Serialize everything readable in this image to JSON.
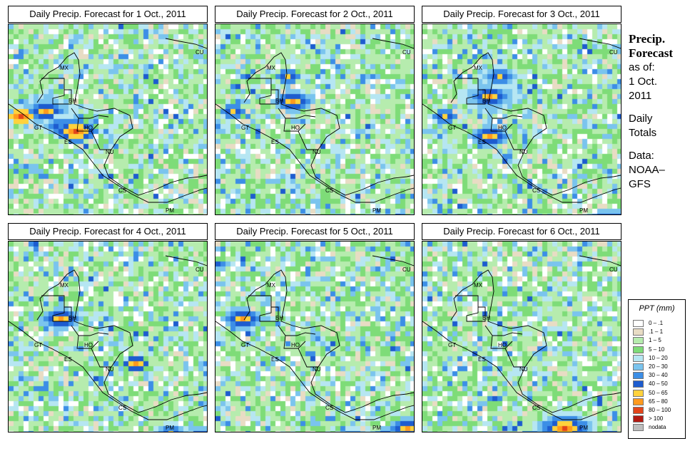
{
  "panels": [
    {
      "title": "Daily Precip. Forecast for  1 Oct., 2011",
      "seed": 11,
      "hot": [
        [
          55,
          120,
          3,
          5
        ],
        [
          70,
          140,
          2,
          4
        ],
        [
          95,
          150,
          2,
          6
        ],
        [
          20,
          130,
          1,
          6
        ],
        [
          320,
          40,
          0,
          0
        ]
      ]
    },
    {
      "title": "Daily Precip. Forecast for  2 Oct., 2011",
      "seed": 23,
      "hot": [
        [
          110,
          110,
          2,
          5
        ],
        [
          100,
          75,
          1,
          4
        ],
        [
          25,
          120,
          1,
          4
        ]
      ]
    },
    {
      "title": "Daily Precip. Forecast for  3 Oct., 2011",
      "seed": 37,
      "hot": [
        [
          95,
          100,
          3,
          5
        ],
        [
          105,
          75,
          2,
          4
        ],
        [
          95,
          160,
          2,
          5
        ],
        [
          30,
          130,
          1,
          4
        ],
        [
          265,
          285,
          3,
          7
        ]
      ]
    },
    {
      "title": "Daily Precip. Forecast for  4 Oct., 2011",
      "seed": 41,
      "hot": [
        [
          70,
          105,
          2,
          5
        ],
        [
          175,
          170,
          1,
          5
        ],
        [
          270,
          280,
          3,
          7
        ],
        [
          230,
          270,
          2,
          4
        ],
        [
          110,
          285,
          1,
          4
        ]
      ]
    },
    {
      "title": "Daily Precip. Forecast for  5 Oct., 2011",
      "seed": 53,
      "hot": [
        [
          40,
          110,
          2,
          5
        ],
        [
          250,
          280,
          3,
          7
        ],
        [
          190,
          278,
          2,
          4
        ],
        [
          150,
          285,
          1,
          4
        ],
        [
          270,
          265,
          2,
          5
        ]
      ]
    },
    {
      "title": "Daily Precip. Forecast for  6 Oct., 2011",
      "seed": 67,
      "hot": [
        [
          200,
          265,
          3,
          6
        ],
        [
          260,
          280,
          2,
          7
        ],
        [
          150,
          275,
          1,
          4
        ],
        [
          100,
          285,
          1,
          4
        ]
      ]
    }
  ],
  "map_labels": [
    "MX",
    "BH",
    "GT",
    "HO",
    "ES",
    "NU",
    "CS",
    "PM",
    "CU"
  ],
  "side": {
    "heading_1": "Precip.",
    "heading_2": "Forecast",
    "asof": "as of:",
    "date_1": "1 Oct.",
    "date_2": "2011",
    "daily_1": "Daily",
    "daily_2": "Totals",
    "data_1": "Data:",
    "data_2": "NOAA–",
    "data_3": "GFS"
  },
  "legend": {
    "title": "PPT (mm)",
    "items": [
      {
        "label": "0 – .1",
        "color": "#ffffff"
      },
      {
        "label": ".1 – 1",
        "color": "#e8dcc4"
      },
      {
        "label": "1 – 5",
        "color": "#b6ecae"
      },
      {
        "label": "5 – 10",
        "color": "#7edc78"
      },
      {
        "label": "10 – 20",
        "color": "#b6e6f2"
      },
      {
        "label": "20 – 30",
        "color": "#7ac4ee"
      },
      {
        "label": "30 – 40",
        "color": "#3c8ee6"
      },
      {
        "label": "40 – 50",
        "color": "#1d5ccf"
      },
      {
        "label": "50 – 65",
        "color": "#ffd23c"
      },
      {
        "label": "65 – 80",
        "color": "#ff9a1e"
      },
      {
        "label": "80 – 100",
        "color": "#e2451a"
      },
      {
        "label": "> 100",
        "color": "#b21a12"
      },
      {
        "label": "nodata",
        "color": "#bdbdbd"
      }
    ]
  }
}
